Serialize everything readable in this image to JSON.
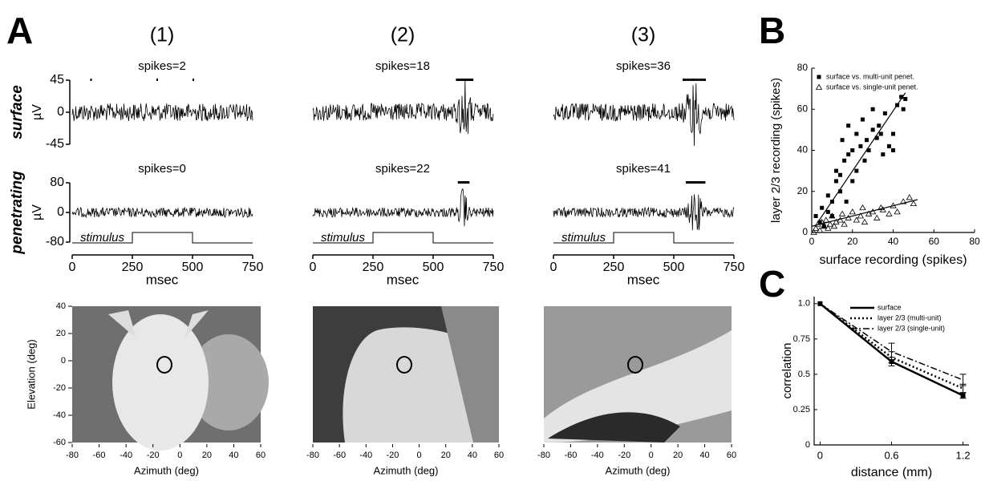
{
  "panel_labels": {
    "A": "A",
    "B": "B",
    "C": "C"
  },
  "chart_data": [
    {
      "type": "trace",
      "column": "(1)",
      "rows": [
        {
          "name": "surface",
          "spikes": "spikes=2",
          "unit": "µV",
          "ylim": [
            -45,
            45
          ],
          "yticks": [
            45,
            0,
            -45
          ]
        },
        {
          "name": "penetrating",
          "spikes": "spikes=0",
          "unit": "µV",
          "ylim": [
            -80,
            80
          ],
          "yticks": [
            80,
            0,
            -80
          ]
        }
      ],
      "stimulus": "stimulus",
      "xlim": [
        0,
        750
      ],
      "xticks": [
        0,
        250,
        500,
        750
      ],
      "xlabel": "msec"
    },
    {
      "type": "trace",
      "column": "(2)",
      "rows": [
        {
          "spikes": "spikes=18"
        },
        {
          "spikes": "spikes=22"
        }
      ],
      "stimulus": "stimulus",
      "xlim": [
        0,
        750
      ],
      "xticks": [
        0,
        250,
        500,
        750
      ],
      "xlabel": "msec"
    },
    {
      "type": "trace",
      "column": "(3)",
      "rows": [
        {
          "spikes": "spikes=36"
        },
        {
          "spikes": "spikes=41"
        }
      ],
      "stimulus": "stimulus",
      "xlim": [
        0,
        750
      ],
      "xticks": [
        0,
        250,
        500,
        750
      ],
      "xlabel": "msec"
    },
    {
      "type": "image",
      "xlim": [
        -80,
        60
      ],
      "xticks": [
        -80,
        -60,
        -40,
        -20,
        0,
        20,
        40,
        60
      ],
      "xlabel": "Azimuth (deg)",
      "ylim": [
        -60,
        40
      ],
      "yticks": [
        40,
        20,
        0,
        -20,
        -40,
        -60
      ],
      "ylabel": "Elevation (deg)"
    },
    {
      "type": "image",
      "xlim": [
        -80,
        60
      ],
      "xticks": [
        -80,
        -60,
        -40,
        -20,
        0,
        20,
        40,
        60
      ],
      "xlabel": "Azimuth (deg)"
    },
    {
      "type": "image",
      "xlim": [
        -80,
        60
      ],
      "xticks": [
        -80,
        -60,
        -40,
        -20,
        0,
        20,
        40,
        60
      ],
      "xlabel": "Azimuth (deg)"
    },
    {
      "type": "scatter",
      "xlabel": "surface recording (spikes)",
      "ylabel": "layer 2/3 recording (spikes)",
      "xlim": [
        0,
        80
      ],
      "ylim": [
        0,
        80
      ],
      "xticks": [
        0,
        20,
        40,
        60,
        80
      ],
      "yticks": [
        0,
        20,
        40,
        60,
        80
      ],
      "series": [
        {
          "name": "surface vs. multi-unit penet.",
          "marker": "square",
          "color": "#000000",
          "x": [
            2,
            4,
            5,
            6,
            8,
            8,
            10,
            10,
            12,
            12,
            14,
            14,
            15,
            16,
            17,
            18,
            18,
            20,
            20,
            22,
            22,
            24,
            25,
            26,
            27,
            28,
            30,
            30,
            32,
            33,
            34,
            35,
            36,
            38,
            40,
            40,
            42,
            44,
            45,
            46
          ],
          "y": [
            8,
            5,
            12,
            3,
            10,
            18,
            8,
            15,
            25,
            30,
            20,
            28,
            45,
            35,
            15,
            38,
            52,
            40,
            25,
            30,
            48,
            42,
            55,
            35,
            45,
            40,
            50,
            60,
            46,
            52,
            48,
            38,
            58,
            42,
            40,
            48,
            62,
            66,
            60,
            65
          ],
          "fit": {
            "x": [
              3,
              46
            ],
            "y": [
              5,
              68
            ]
          }
        },
        {
          "name": "surface vs. single-unit penet.",
          "marker": "triangle",
          "color": "#000000",
          "x": [
            1,
            2,
            3,
            4,
            5,
            6,
            7,
            8,
            9,
            10,
            11,
            12,
            14,
            15,
            16,
            18,
            20,
            22,
            24,
            25,
            26,
            28,
            30,
            32,
            34,
            35,
            38,
            40,
            42,
            45,
            48,
            50
          ],
          "y": [
            0,
            2,
            4,
            1,
            5,
            3,
            6,
            2,
            4,
            8,
            3,
            5,
            6,
            9,
            4,
            7,
            10,
            6,
            8,
            12,
            5,
            9,
            10,
            7,
            12,
            11,
            9,
            13,
            10,
            15,
            17,
            14
          ],
          "fit": {
            "x": [
              0,
              52
            ],
            "y": [
              3,
              16
            ]
          }
        }
      ]
    },
    {
      "type": "line",
      "xlabel": "distance (mm)",
      "ylabel": "correlation",
      "x": [
        0,
        0.6,
        1.2
      ],
      "xlim": [
        -0.05,
        1.25
      ],
      "xticks": [
        0,
        0.6,
        1.2
      ],
      "ylim": [
        0,
        1.05
      ],
      "yticks": [
        0,
        0.25,
        0.5,
        0.75,
        {
          "value": 1,
          "label": "1.0"
        }
      ],
      "series": [
        {
          "name": "surface",
          "dash": "solid",
          "values": [
            1,
            0.59,
            0.35
          ],
          "errors": [
            0,
            0.03,
            0.02
          ]
        },
        {
          "name": "layer 2/3 (multi-unit)",
          "dash": "dot",
          "values": [
            1,
            0.62,
            0.4
          ],
          "errors": [
            0,
            0.04,
            0.03
          ]
        },
        {
          "name": "layer 2/3 (single-unit)",
          "dash": "dashdot",
          "values": [
            1,
            0.66,
            0.46
          ],
          "errors": [
            0,
            0.06,
            0.04
          ]
        }
      ]
    }
  ]
}
